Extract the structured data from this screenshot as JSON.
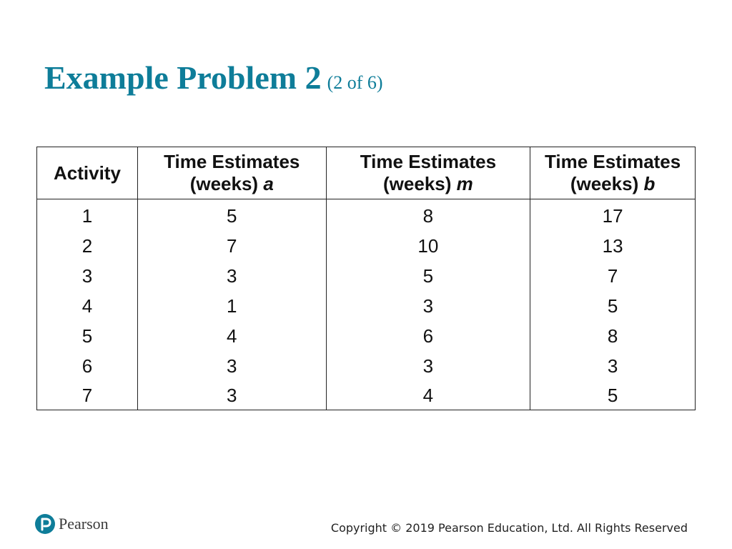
{
  "title": {
    "main": "Example Problem 2",
    "sub": "(2 of 6)"
  },
  "table": {
    "headers": [
      {
        "line1": "Activity",
        "line2": "",
        "var": ""
      },
      {
        "line1": "Time Estimates",
        "line2": "(weeks) ",
        "var": "a"
      },
      {
        "line1": "Time Estimates",
        "line2": "(weeks) ",
        "var": "m"
      },
      {
        "line1": "Time Estimates",
        "line2": "(weeks) ",
        "var": "b"
      }
    ],
    "rows": [
      [
        "1",
        "5",
        "8",
        "17"
      ],
      [
        "2",
        "7",
        "10",
        "13"
      ],
      [
        "3",
        "3",
        "5",
        "7"
      ],
      [
        "4",
        "1",
        "3",
        "5"
      ],
      [
        "5",
        "4",
        "6",
        "8"
      ],
      [
        "6",
        "3",
        "3",
        "3"
      ],
      [
        "7",
        "3",
        "4",
        "5"
      ]
    ]
  },
  "footer": {
    "logo_text": "Pearson",
    "logo_icon": "pearson-logo-icon",
    "copyright": "Copyright © 2019 Pearson Education, Ltd. All Rights Reserved"
  },
  "colors": {
    "title": "#0e7d99",
    "logo": "#0e7d99"
  }
}
